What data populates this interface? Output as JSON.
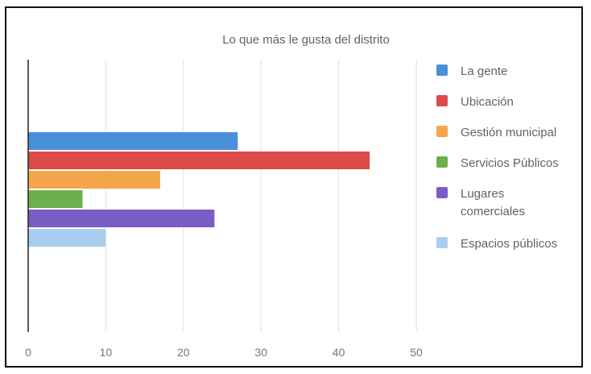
{
  "chart_data": {
    "type": "bar",
    "orientation": "horizontal",
    "title": "Lo que más le gusta del distrito",
    "xlabel": "",
    "ylabel": "",
    "xlim": [
      0,
      50
    ],
    "xticks": [
      0,
      10,
      20,
      30,
      40,
      50
    ],
    "grid": true,
    "legend_position": "right",
    "categories": [
      ""
    ],
    "series": [
      {
        "name": "La gente",
        "lines": [
          "La gente"
        ],
        "values": [
          27
        ],
        "color": "#4a90d9"
      },
      {
        "name": "Ubicación",
        "lines": [
          "Ubicación"
        ],
        "values": [
          44
        ],
        "color": "#dc4a4a"
      },
      {
        "name": "Gestión municipal",
        "lines": [
          "Gestión municipal"
        ],
        "values": [
          17
        ],
        "color": "#f5a54a"
      },
      {
        "name": "Servicios Públicos",
        "lines": [
          "Servicios Públicos"
        ],
        "values": [
          7
        ],
        "color": "#6ab04c"
      },
      {
        "name": "Lugares comerciales",
        "lines": [
          "Lugares",
          "comerciales"
        ],
        "values": [
          24
        ],
        "color": "#7b5cc4"
      },
      {
        "name": "Espacios públicos",
        "lines": [
          "Espacios públicos"
        ],
        "values": [
          10
        ],
        "color": "#a8cff0"
      }
    ]
  }
}
